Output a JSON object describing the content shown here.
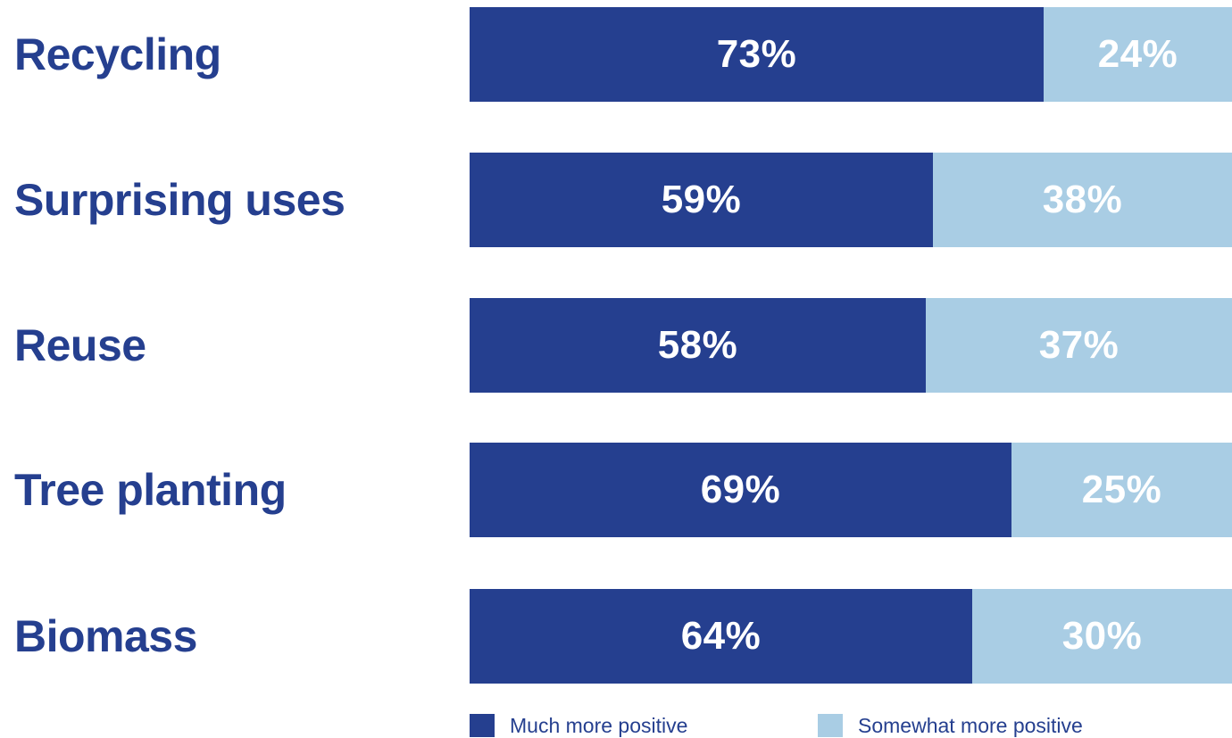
{
  "colors": {
    "primary": "#253f8f",
    "secondary": "#a9cde4",
    "label": "#253f8f"
  },
  "chart_data": {
    "type": "bar",
    "orientation": "horizontal",
    "stacked": true,
    "categories": [
      "Recycling",
      "Surprising uses",
      "Reuse",
      "Tree planting",
      "Biomass"
    ],
    "series": [
      {
        "name": "Much more positive",
        "values": [
          73,
          59,
          58,
          69,
          64
        ],
        "color": "#253f8f"
      },
      {
        "name": "Somewhat more positive",
        "values": [
          24,
          38,
          37,
          25,
          30
        ],
        "color": "#a9cde4"
      }
    ],
    "value_suffix": "%",
    "xlim": [
      0,
      97
    ],
    "legend": "bottom",
    "grid": false
  }
}
